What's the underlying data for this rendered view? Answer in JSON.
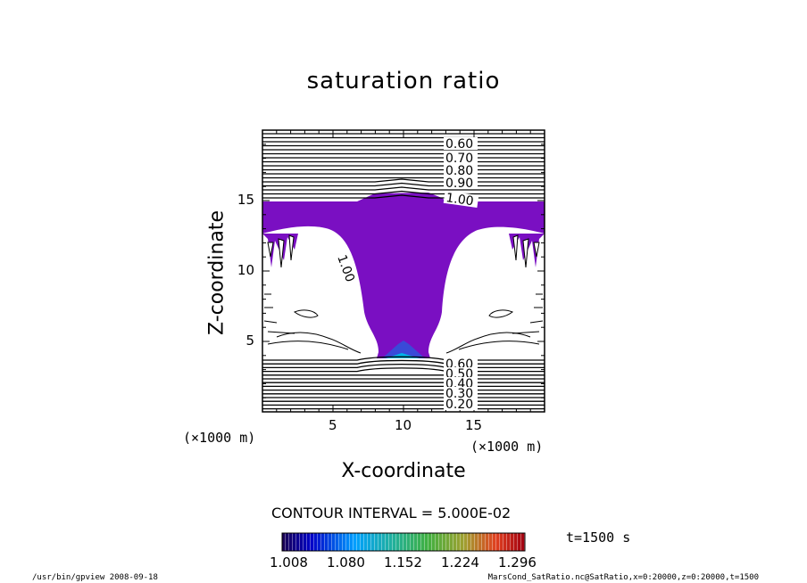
{
  "chart_data": {
    "type": "contour",
    "title": "saturation ratio",
    "xlabel": "X-coordinate",
    "ylabel": "Z-coordinate",
    "x_unit": "(×1000 m)",
    "z_unit": "(×1000 m)",
    "xlim": [
      0,
      20
    ],
    "ylim": [
      0,
      20
    ],
    "x_ticks": [
      5,
      10,
      15
    ],
    "y_ticks": [
      5,
      10,
      15
    ],
    "contour_line_labels": {
      "upper": [
        "0.60",
        "0.70",
        "0.80",
        "0.90",
        "1.00"
      ],
      "lower": [
        "0.60",
        "0.50",
        "0.40",
        "0.30",
        "0.20"
      ],
      "side": "1.00"
    },
    "contour_interval": "CONTOUR INTERVAL = 5.000E-02",
    "colorbar": {
      "ticks": [
        "1.008",
        "1.080",
        "1.152",
        "1.224",
        "1.296"
      ],
      "range": [
        1.008,
        1.296
      ]
    },
    "fill_color": "#7a0fc2",
    "time_label": "t=1500 s"
  },
  "footer": {
    "program": "/usr/bin/gpview   2008-09-18",
    "source": "MarsCond_SatRatio.nc@SatRatio,x=0:20000,z=0:20000,t=1500"
  }
}
